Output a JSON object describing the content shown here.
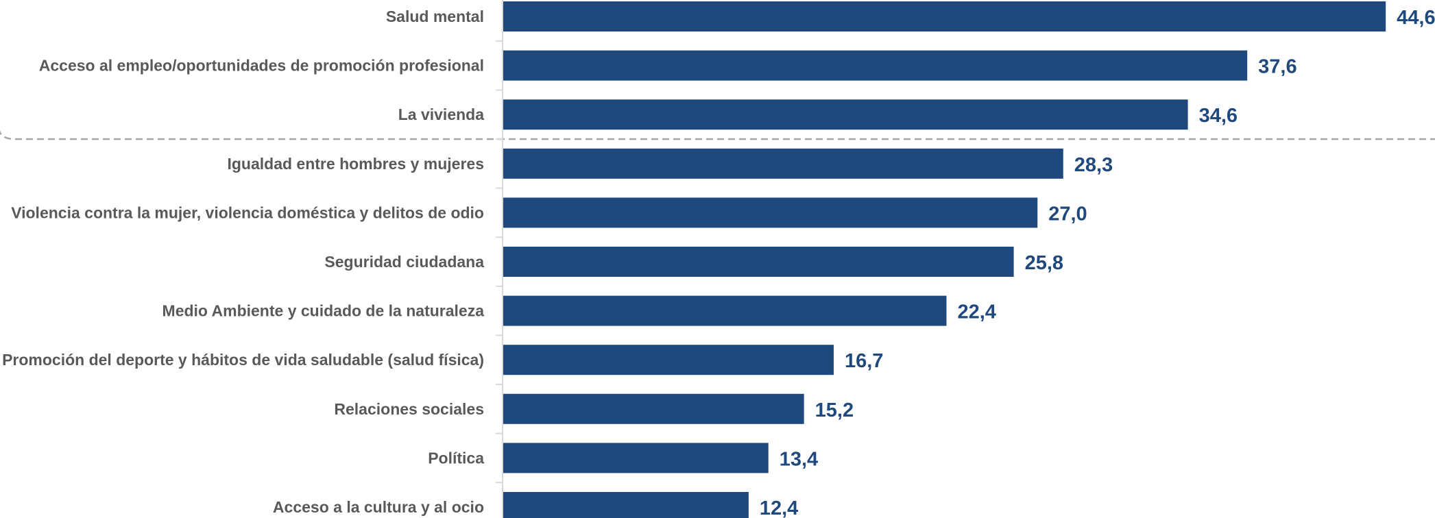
{
  "chart_data": {
    "type": "bar",
    "orientation": "horizontal",
    "title": "",
    "xlabel": "",
    "ylabel": "",
    "categories": [
      "Salud mental",
      "Acceso al empleo/oportunidades de promoción profesional",
      "La vivienda",
      "Igualdad entre hombres y mujeres",
      "Violencia contra la mujer, violencia doméstica y delitos de odio",
      "Seguridad ciudadana",
      "Medio Ambiente y cuidado de la naturaleza",
      "Promoción del deporte y hábitos de vida saludable (salud física)",
      "Relaciones sociales",
      "Política",
      "Acceso a la cultura y al ocio"
    ],
    "values": [
      44.6,
      37.6,
      34.6,
      28.3,
      27.0,
      25.8,
      22.4,
      16.7,
      15.2,
      13.4,
      12.4
    ],
    "value_labels": [
      "44,6",
      "37,6",
      "34,6",
      "28,3",
      "27,0",
      "25,8",
      "22,4",
      "16,7",
      "15,2",
      "13,4",
      "12,4"
    ],
    "xlim": [
      0,
      46.5
    ],
    "grid": false,
    "legend": "none",
    "highlight_separator": "dashed line below the first 3 categories",
    "colors": {
      "bar": "#1F497D",
      "value_label": "#1F497D",
      "category_label": "#595959",
      "axis": "#D9D9D9",
      "separator": "#A6A6A6"
    }
  }
}
